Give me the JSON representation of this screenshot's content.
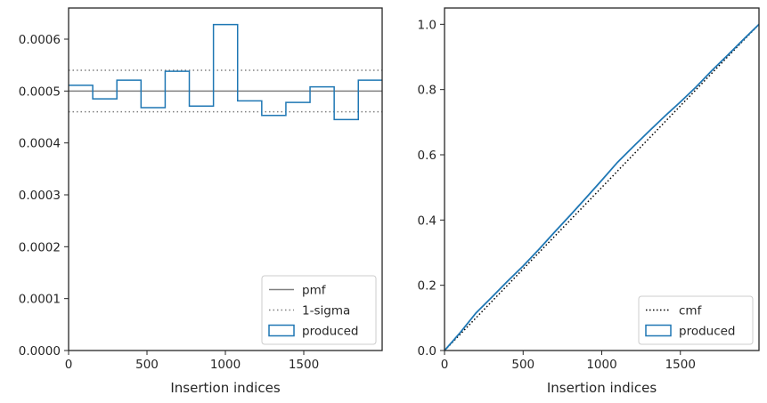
{
  "colors": {
    "produced": "#1f77b4",
    "pmf": "#808080",
    "sigma": "#808080",
    "cmf": "#000000",
    "axes": "#262626"
  },
  "chart_data": [
    {
      "type": "step-histogram",
      "xlabel": "Insertion indices",
      "ylabel": "",
      "xlim": [
        0,
        2000
      ],
      "ylim": [
        0,
        0.00066
      ],
      "xticks": [
        0,
        500,
        1000,
        1500
      ],
      "xtick_labels": [
        "0",
        "500",
        "1000",
        "1500"
      ],
      "yticks": [
        0,
        0.0001,
        0.0002,
        0.0003,
        0.0004,
        0.0005,
        0.0006
      ],
      "ytick_labels": [
        "0.0000",
        "0.0001",
        "0.0002",
        "0.0003",
        "0.0004",
        "0.0005",
        "0.0006"
      ],
      "pmf": 0.0005,
      "sigma_band": [
        0.00046,
        0.00054
      ],
      "bin_edges": [
        0,
        154,
        308,
        462,
        616,
        770,
        924,
        1078,
        1232,
        1386,
        1540,
        1694,
        1848,
        2000
      ],
      "values": [
        0.000511,
        0.000485,
        0.000521,
        0.000468,
        0.000538,
        0.000471,
        0.000628,
        0.000481,
        0.000453,
        0.000478,
        0.000508,
        0.000445,
        0.000521
      ],
      "legend": {
        "position": "lower right",
        "entries": [
          {
            "label": "pmf",
            "style": "line"
          },
          {
            "label": "1-sigma",
            "style": "dotted"
          },
          {
            "label": "produced",
            "style": "box"
          }
        ]
      }
    },
    {
      "type": "line",
      "xlabel": "Insertion indices",
      "ylabel": "",
      "xlim": [
        0,
        2000
      ],
      "ylim": [
        0,
        1.05
      ],
      "xticks": [
        0,
        500,
        1000,
        1500
      ],
      "xtick_labels": [
        "0",
        "500",
        "1000",
        "1500"
      ],
      "yticks": [
        0,
        0.2,
        0.4,
        0.6,
        0.8,
        1.0
      ],
      "ytick_labels": [
        "0.0",
        "0.2",
        "0.4",
        "0.6",
        "0.8",
        "1.0"
      ],
      "cmf": {
        "x": [
          0,
          2000
        ],
        "y": [
          0,
          1
        ]
      },
      "produced": {
        "x": [
          0,
          100,
          200,
          300,
          400,
          500,
          600,
          700,
          800,
          900,
          1000,
          1100,
          1200,
          1300,
          1400,
          1500,
          1600,
          1700,
          1800,
          1900,
          2000
        ],
        "y": [
          0,
          0.055,
          0.115,
          0.163,
          0.212,
          0.259,
          0.31,
          0.363,
          0.415,
          0.468,
          0.522,
          0.577,
          0.625,
          0.672,
          0.718,
          0.762,
          0.808,
          0.858,
          0.905,
          0.953,
          1.0
        ]
      },
      "legend": {
        "position": "lower right",
        "entries": [
          {
            "label": "cmf",
            "style": "dotted"
          },
          {
            "label": "produced",
            "style": "box"
          }
        ]
      }
    }
  ]
}
